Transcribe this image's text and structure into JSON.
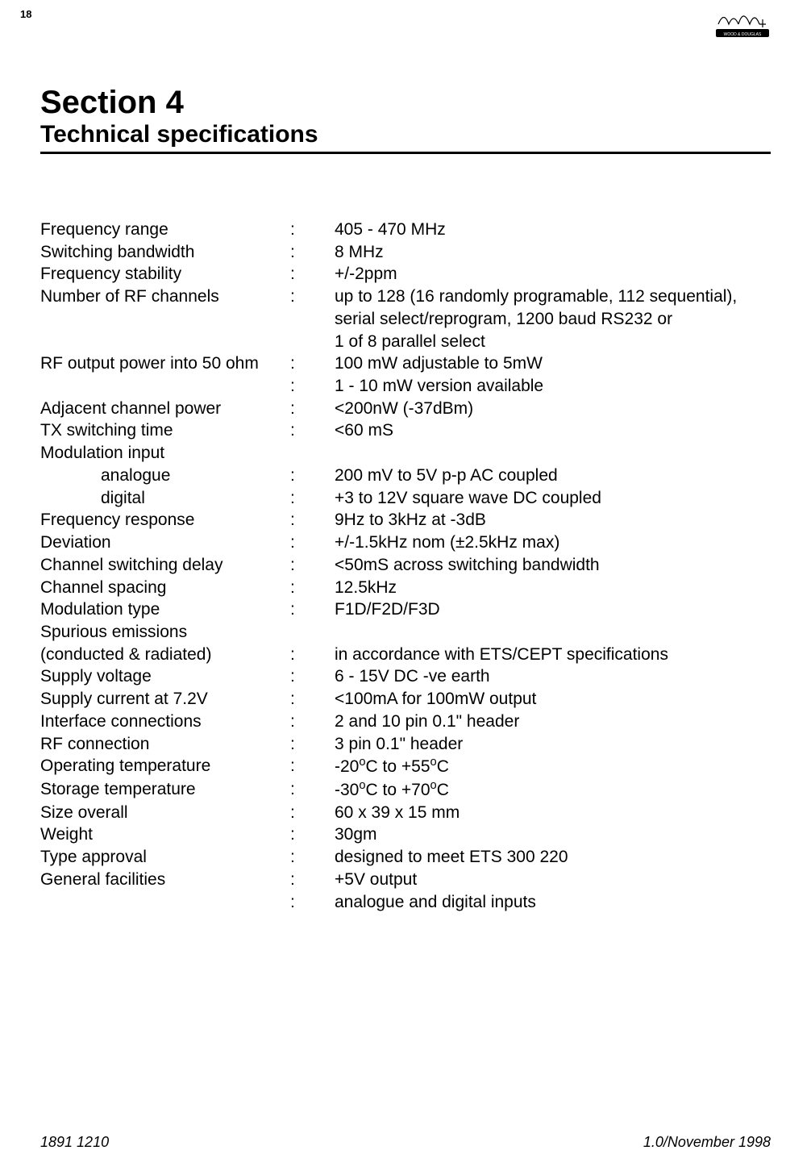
{
  "page_number": "18",
  "section_number": "Section 4",
  "section_title": "Technical specifications",
  "specs": [
    {
      "label": "Frequency range",
      "sep": ":",
      "value": "405 - 470 MHz"
    },
    {
      "label": "Switching bandwidth",
      "sep": ":",
      "value": "8 MHz"
    },
    {
      "label": "Frequency stability",
      "sep": ":",
      "value": "+/-2ppm"
    },
    {
      "label": "Number of RF channels",
      "sep": ":",
      "value": "up to 128 (16 randomly programable, 112 sequential), serial select/reprogram, 1200 baud RS232 or"
    },
    {
      "label": "",
      "sep": "",
      "value": "1 of 8 parallel select"
    },
    {
      "label": "RF output power into 50 ohm",
      "sep": ":",
      "value": "100 mW adjustable to 5mW"
    },
    {
      "label": "",
      "sep": ":",
      "value": "1 - 10 mW version available"
    },
    {
      "label": "Adjacent channel power",
      "sep": ":",
      "value": "<200nW (-37dBm)"
    },
    {
      "label": "TX switching time",
      "sep": ":",
      "value": "<60 mS"
    },
    {
      "label": "Modulation input",
      "sep": "",
      "value": ""
    },
    {
      "label": "analogue",
      "sep": ":",
      "value": "200 mV to 5V p-p AC coupled",
      "indent": true
    },
    {
      "label": "digital",
      "sep": ":",
      "value": "+3 to 12V square wave DC coupled",
      "indent": true
    },
    {
      "label": "Frequency response",
      "sep": ":",
      "value": "9Hz to 3kHz at -3dB"
    },
    {
      "label": "Deviation",
      "sep": ":",
      "value": "+/-1.5kHz nom (±2.5kHz max)"
    },
    {
      "label": "Channel switching delay",
      "sep": ":",
      "value": "<50mS across switching bandwidth"
    },
    {
      "label": "Channel spacing",
      "sep": ":",
      "value": "12.5kHz"
    },
    {
      "label": "Modulation type",
      "sep": ":",
      "value": "F1D/F2D/F3D"
    },
    {
      "label": "Spurious emissions",
      "sep": "",
      "value": ""
    },
    {
      "label": "(conducted & radiated)",
      "sep": ":",
      "value": "in accordance with ETS/CEPT specifications"
    },
    {
      "label": "Supply voltage",
      "sep": ":",
      "value": "6 - 15V DC -ve earth"
    },
    {
      "label": "Supply current at 7.2V",
      "sep": ":",
      "value": "<100mA for 100mW output"
    },
    {
      "label": "Interface connections",
      "sep": ":",
      "value": "2 and  10 pin 0.1\" header"
    },
    {
      "label": "RF connection",
      "sep": ":",
      "value": "3 pin 0.1\" header"
    },
    {
      "label": "Operating temperature",
      "sep": ":",
      "value": "-20°C to +55°C",
      "degree": true,
      "pre": "-20",
      "post": "C to +55",
      "end": "C"
    },
    {
      "label": "Storage temperature",
      "sep": ":",
      "value": "-30°C to +70°C",
      "degree": true,
      "pre": "-30",
      "post": "C to +70",
      "end": "C"
    },
    {
      "label": "Size overall",
      "sep": ":",
      "value": "60 x 39 x 15 mm"
    },
    {
      "label": "Weight",
      "sep": ":",
      "value": "30gm"
    },
    {
      "label": "Type approval",
      "sep": ":",
      "value": "designed to meet ETS 300 220"
    },
    {
      "label": "General facilities",
      "sep": ":",
      "value": "+5V output"
    },
    {
      "label": "",
      "sep": ":",
      "value": "analogue and digital inputs"
    }
  ],
  "footer_left": "1891 1210",
  "footer_right": "1.0/November 1998",
  "logo_text": "WOOD & DOUGLAS"
}
